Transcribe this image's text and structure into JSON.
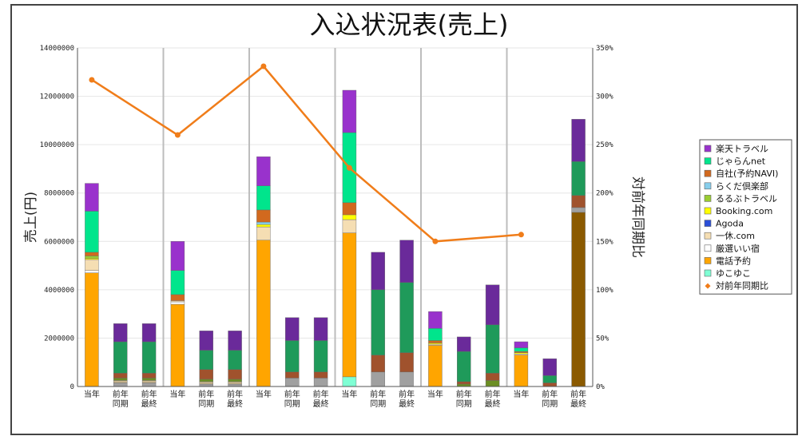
{
  "chart_data": {
    "type": "bar",
    "stacked": true,
    "title": "入込状況表(売上)",
    "ylabel": "売上(円)",
    "y2label": "対前年同期比",
    "ylim": [
      0,
      14000000
    ],
    "y2lim": [
      0,
      350
    ],
    "yticks": [
      "0",
      "2000000",
      "4000000",
      "6000000",
      "8000000",
      "10000000",
      "12000000",
      "14000000"
    ],
    "y2ticks": [
      "0%",
      "50%",
      "100%",
      "150%",
      "200%",
      "250%",
      "300%",
      "350%"
    ],
    "categories": [
      {
        "l1": "当年",
        "l2": ""
      },
      {
        "l1": "前年",
        "l2": "同期"
      },
      {
        "l1": "前年",
        "l2": "最終"
      },
      {
        "l1": "当年",
        "l2": ""
      },
      {
        "l1": "前年",
        "l2": "同期"
      },
      {
        "l1": "前年",
        "l2": "最終"
      },
      {
        "l1": "当年",
        "l2": ""
      },
      {
        "l1": "前年",
        "l2": "同期"
      },
      {
        "l1": "前年",
        "l2": "最終"
      },
      {
        "l1": "当年",
        "l2": ""
      },
      {
        "l1": "前年",
        "l2": "同期"
      },
      {
        "l1": "前年",
        "l2": "最終"
      },
      {
        "l1": "当年",
        "l2": ""
      },
      {
        "l1": "前年",
        "l2": "同期"
      },
      {
        "l1": "前年",
        "l2": "最終"
      },
      {
        "l1": "当年",
        "l2": ""
      },
      {
        "l1": "前年",
        "l2": "同期"
      },
      {
        "l1": "前年",
        "l2": "最終"
      }
    ],
    "series": [
      {
        "name": "ゆこゆこ",
        "values": [
          0,
          0,
          0,
          0,
          0,
          0,
          0,
          0,
          0,
          400000,
          0,
          0,
          0,
          0,
          0,
          0,
          0,
          0
        ]
      },
      {
        "name": "電話予約",
        "values": [
          4700000,
          0,
          0,
          3400000,
          0,
          0,
          6050000,
          0,
          0,
          5950000,
          0,
          0,
          1700000,
          0,
          0,
          1300000,
          0,
          7200000
        ]
      },
      {
        "name": "厳選いい宿",
        "values": [
          100000,
          150000,
          150000,
          100000,
          100000,
          100000,
          0,
          350000,
          350000,
          0,
          600000,
          600000,
          0,
          0,
          0,
          0,
          0,
          200000
        ]
      },
      {
        "name": "一休.com",
        "values": [
          450000,
          100000,
          100000,
          50000,
          100000,
          100000,
          550000,
          0,
          0,
          550000,
          0,
          0,
          50000,
          0,
          0,
          50000,
          0,
          0
        ]
      },
      {
        "name": "Agoda",
        "values": [
          0,
          0,
          0,
          0,
          0,
          0,
          0,
          0,
          0,
          0,
          0,
          0,
          0,
          0,
          0,
          0,
          0,
          0
        ]
      },
      {
        "name": "Booking.com",
        "values": [
          50000,
          0,
          0,
          0,
          0,
          0,
          100000,
          0,
          0,
          200000,
          0,
          0,
          50000,
          0,
          0,
          50000,
          0,
          0
        ]
      },
      {
        "name": "るるぶトラベル",
        "values": [
          100000,
          100000,
          100000,
          0,
          100000,
          100000,
          0,
          0,
          0,
          0,
          0,
          0,
          0,
          100000,
          250000,
          0,
          0,
          0
        ]
      },
      {
        "name": "らくだ倶楽部",
        "values": [
          0,
          0,
          0,
          0,
          0,
          0,
          100000,
          0,
          0,
          0,
          0,
          0,
          0,
          0,
          0,
          0,
          0,
          0
        ]
      },
      {
        "name": "自社(予約NAVI)",
        "values": [
          150000,
          200000,
          200000,
          250000,
          400000,
          400000,
          500000,
          250000,
          250000,
          500000,
          700000,
          800000,
          100000,
          100000,
          300000,
          50000,
          150000,
          500000
        ]
      },
      {
        "name": "じゃらんnet",
        "values": [
          1700000,
          1300000,
          1300000,
          1000000,
          800000,
          800000,
          1000000,
          1300000,
          1300000,
          2900000,
          2700000,
          2900000,
          500000,
          1250000,
          2000000,
          150000,
          300000,
          1400000
        ]
      },
      {
        "name": "楽天トラベル",
        "values": [
          1150000,
          750000,
          750000,
          1200000,
          800000,
          800000,
          1200000,
          950000,
          950000,
          1750000,
          1550000,
          1750000,
          700000,
          600000,
          1650000,
          250000,
          700000,
          1750000
        ]
      }
    ],
    "line": {
      "name": "対前年同期比",
      "values": [
        317,
        null,
        null,
        260,
        null,
        null,
        331,
        null,
        null,
        226,
        null,
        null,
        150,
        null,
        null,
        157,
        null,
        null
      ]
    },
    "group_separators_after": [
      2,
      5,
      8,
      11,
      14
    ],
    "legend_position": "right",
    "grid": true
  },
  "colors": {
    "ゆこゆこ": "#7fffd4",
    "電話予約": "#ffa500",
    "厳選いい宿": "#ffffff",
    "一休.com": "#f5deb3",
    "Agoda": "#2b4fd8",
    "Booking.com": "#ffff00",
    "るるぶトラベル": "#9acd32",
    "らくだ倶楽部": "#87ceeb",
    "自社(予約NAVI)": "#d2691e",
    "じゃらんnet": "#00e58c",
    "楽天トラベル": "#9932cc",
    "対前年同期比": "#f07d1a"
  },
  "colors_prev": {
    "電話予約": "#8b5a00",
    "厳選いい宿": "#a0a0a0",
    "一休.com": "#c8b48c",
    "るるぶトラベル": "#6b8e23",
    "自社(予約NAVI)": "#a0522d",
    "じゃらんnet": "#1f9a5a",
    "楽天トラベル": "#6a2a9a"
  },
  "legend_order": [
    "楽天トラベル",
    "じゃらんnet",
    "自社(予約NAVI)",
    "らくだ倶楽部",
    "るるぶトラベル",
    "Booking.com",
    "Agoda",
    "一休.com",
    "厳選いい宿",
    "電話予約",
    "ゆこゆこ",
    "対前年同期比"
  ]
}
